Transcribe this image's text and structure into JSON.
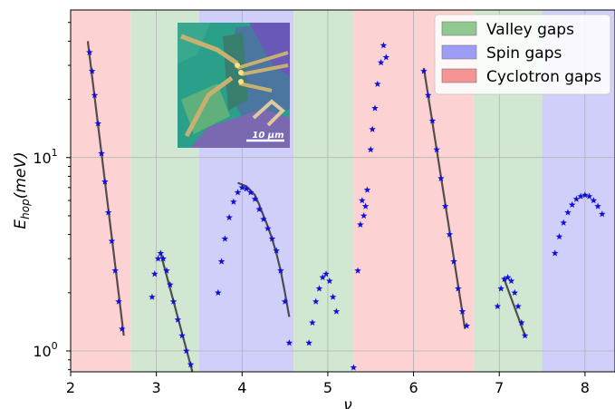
{
  "chart_data": {
    "type": "scatter",
    "title": "",
    "xlabel": "ν",
    "ylabel_main": "E",
    "ylabel_sub": "hop",
    "ylabel_unit": "(meV)",
    "xlim": [
      2.0,
      8.35
    ],
    "ylim": [
      0.78,
      58
    ],
    "yscale": "log",
    "grid": true,
    "x_ticks": [
      2,
      3,
      4,
      5,
      6,
      7,
      8
    ],
    "y_ticks": [
      {
        "value": 1,
        "base": "10",
        "exp": "0"
      },
      {
        "value": 10,
        "base": "10",
        "exp": "1"
      }
    ],
    "legend_position": "top-right",
    "legend": [
      {
        "label": "Valley gaps",
        "color": "#90c890"
      },
      {
        "label": "Spin gaps",
        "color": "#9d9df7"
      },
      {
        "label": "Cyclotron gaps",
        "color": "#f59494"
      }
    ],
    "bands": [
      {
        "type": "Cyclotron gaps",
        "from": 2.0,
        "to": 2.7,
        "color": "#fdd2d2"
      },
      {
        "type": "Valley gaps",
        "from": 2.7,
        "to": 3.5,
        "color": "#d2e7d2"
      },
      {
        "type": "Spin gaps",
        "from": 3.5,
        "to": 4.6,
        "color": "#cfcff9"
      },
      {
        "type": "Valley gaps",
        "from": 4.6,
        "to": 5.3,
        "color": "#d2e7d2"
      },
      {
        "type": "Cyclotron gaps",
        "from": 5.3,
        "to": 6.7,
        "color": "#fdd2d2"
      },
      {
        "type": "Valley gaps",
        "from": 6.7,
        "to": 7.5,
        "color": "#d2e7d2"
      },
      {
        "type": "Spin gaps",
        "from": 7.5,
        "to": 8.35,
        "color": "#cfcff9"
      }
    ],
    "marker_color": "#1010d8",
    "fit_color": "#2a2a2a",
    "series": [
      {
        "x": [
          2.22,
          2.25,
          2.28,
          2.32,
          2.36,
          2.4,
          2.44,
          2.48,
          2.52,
          2.56,
          2.6
        ],
        "y": [
          35,
          28,
          21,
          15,
          10.5,
          7.5,
          5.2,
          3.7,
          2.6,
          1.8,
          1.3
        ]
      },
      {
        "x": [
          2.95,
          2.98,
          3.02,
          3.05,
          3.08,
          3.12,
          3.16,
          3.2,
          3.25,
          3.3,
          3.35,
          3.4
        ],
        "y": [
          1.9,
          2.5,
          3.0,
          3.2,
          3.0,
          2.6,
          2.2,
          1.8,
          1.45,
          1.2,
          1.0,
          0.85
        ]
      },
      {
        "x": [
          3.72,
          3.76,
          3.8,
          3.85,
          3.9,
          3.95,
          4.0,
          4.05,
          4.1,
          4.15,
          4.2,
          4.25,
          4.3,
          4.35,
          4.4,
          4.45,
          4.5,
          4.55
        ],
        "y": [
          2.0,
          2.9,
          3.8,
          4.9,
          5.9,
          6.6,
          7.0,
          6.9,
          6.6,
          6.1,
          5.4,
          4.8,
          4.3,
          3.8,
          3.3,
          2.6,
          1.8,
          1.1
        ]
      },
      {
        "x": [
          4.78,
          4.82,
          4.86,
          4.9,
          4.94,
          4.98,
          5.02,
          5.06,
          5.1
        ],
        "y": [
          1.1,
          1.4,
          1.8,
          2.1,
          2.4,
          2.5,
          2.3,
          1.9,
          1.6
        ]
      },
      {
        "x": [
          5.3,
          5.35,
          5.38,
          5.4,
          5.42,
          5.44,
          5.46,
          5.5,
          5.52,
          5.55,
          5.58,
          5.62,
          5.65,
          5.68
        ],
        "y": [
          0.82,
          2.6,
          4.5,
          6.0,
          5.0,
          5.6,
          6.8,
          11.0,
          14.0,
          18.0,
          24.0,
          31.0,
          38.0,
          33.0
        ]
      },
      {
        "x": [
          6.12,
          6.17,
          6.22,
          6.27,
          6.32,
          6.37,
          6.42,
          6.47,
          6.52,
          6.57,
          6.62
        ],
        "y": [
          28,
          21,
          15.5,
          11.0,
          7.8,
          5.6,
          4.0,
          2.9,
          2.1,
          1.6,
          1.35
        ]
      },
      {
        "x": [
          6.98,
          7.02,
          7.06,
          7.1,
          7.14,
          7.18,
          7.22,
          7.26,
          7.3
        ],
        "y": [
          1.7,
          2.1,
          2.35,
          2.4,
          2.3,
          2.0,
          1.7,
          1.4,
          1.2
        ]
      },
      {
        "x": [
          7.65,
          7.7,
          7.75,
          7.8,
          7.85,
          7.9,
          7.95,
          8.0,
          8.05,
          8.1,
          8.15,
          8.2
        ],
        "y": [
          3.2,
          3.9,
          4.6,
          5.2,
          5.7,
          6.1,
          6.3,
          6.4,
          6.3,
          6.0,
          5.6,
          5.1
        ]
      }
    ],
    "fits": [
      {
        "x": [
          2.2,
          2.62
        ],
        "y": [
          40,
          1.2
        ]
      },
      {
        "x": [
          3.05,
          3.42
        ],
        "y": [
          3.2,
          0.78
        ]
      },
      {
        "x": [
          3.95,
          4.05,
          4.15,
          4.2,
          4.25,
          4.3,
          4.35,
          4.4,
          4.45,
          4.5,
          4.55
        ],
        "y": [
          7.4,
          7.1,
          6.4,
          5.7,
          5.0,
          4.4,
          3.8,
          3.2,
          2.6,
          2.0,
          1.5
        ]
      },
      {
        "x": [
          5.7,
          5.7
        ],
        "y": [
          40,
          40
        ]
      },
      {
        "x": [
          6.12,
          6.6
        ],
        "y": [
          29,
          1.3
        ]
      },
      {
        "x": [
          7.05,
          7.3
        ],
        "y": [
          2.4,
          1.2
        ]
      }
    ],
    "inset": {
      "scale_bar_label": "10 μm"
    }
  }
}
